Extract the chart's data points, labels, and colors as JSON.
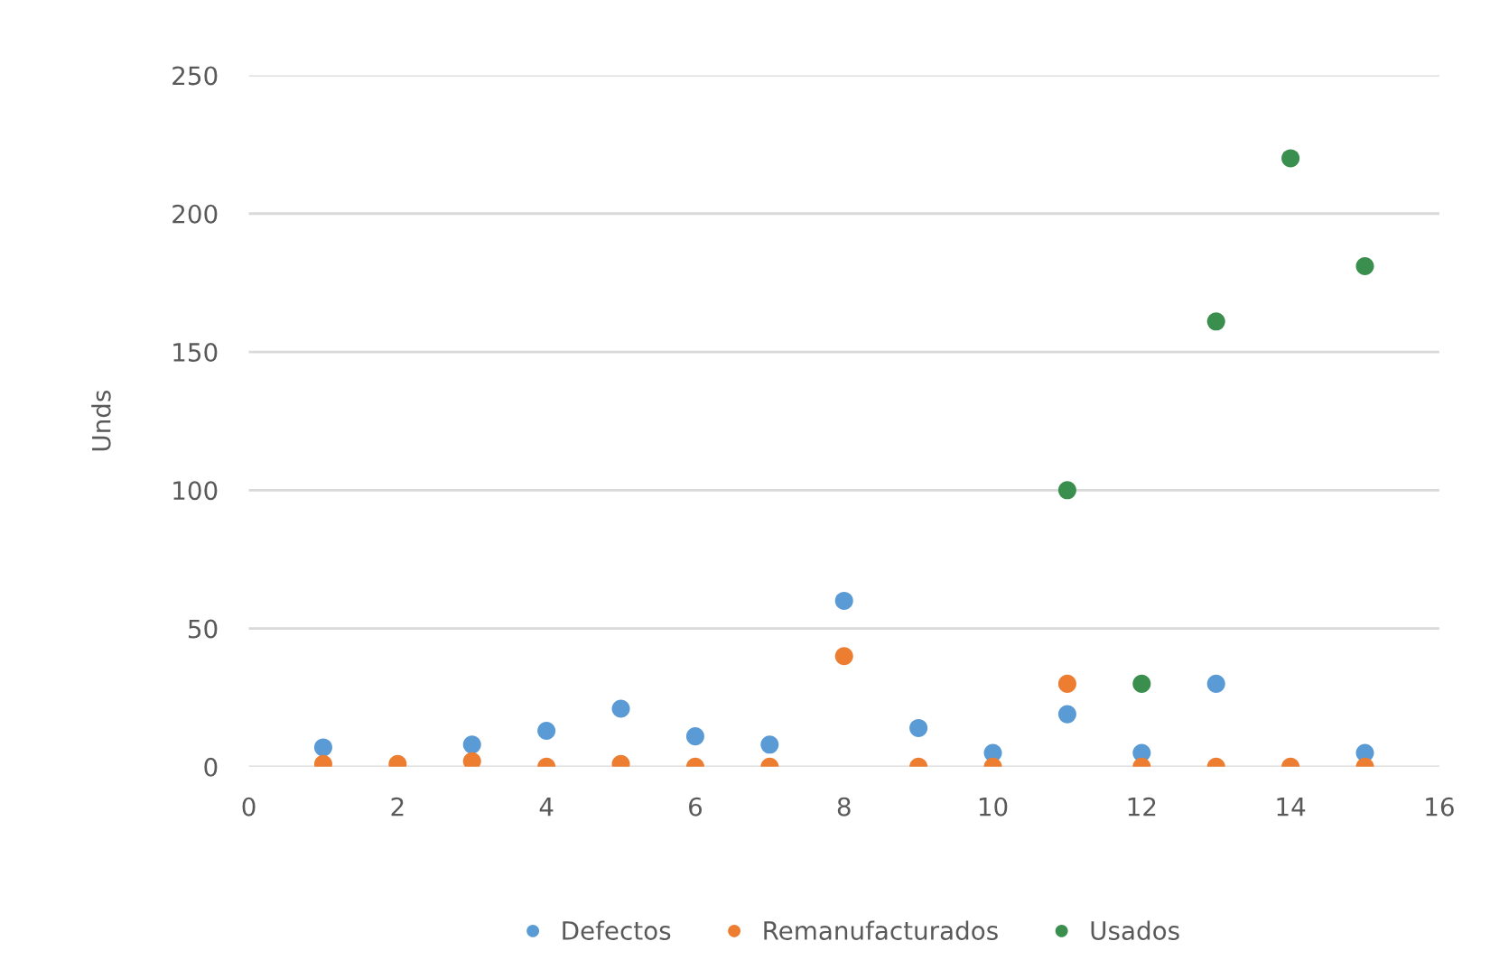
{
  "chart_data": {
    "type": "scatter",
    "ylabel": "Unds",
    "xlim": [
      0,
      16
    ],
    "xticks": [
      0,
      2,
      4,
      6,
      8,
      10,
      12,
      14,
      16
    ],
    "ylim": [
      0,
      250
    ],
    "yticks": [
      0,
      50,
      100,
      150,
      200,
      250
    ],
    "grid": "y",
    "legend": "bottom",
    "marker": "circle",
    "series": [
      {
        "name": "Defectos",
        "color": "#5b9bd5",
        "x": [
          1,
          2,
          3,
          4,
          5,
          6,
          7,
          8,
          9,
          10,
          11,
          12,
          13,
          14,
          15
        ],
        "values": [
          7,
          null,
          8,
          13,
          21,
          11,
          8,
          60,
          14,
          5,
          19,
          5,
          30,
          null,
          5
        ]
      },
      {
        "name": "Remanufacturados",
        "color": "#ed7d31",
        "x": [
          1,
          2,
          3,
          4,
          5,
          6,
          7,
          8,
          9,
          10,
          11,
          12,
          13,
          14,
          15
        ],
        "values": [
          1,
          1,
          2,
          0,
          1,
          0,
          0,
          40,
          0,
          0,
          30,
          0,
          0,
          0,
          0
        ]
      },
      {
        "name": "Usados",
        "color": "#3a8f4e",
        "x": [
          11,
          12,
          13,
          14,
          15
        ],
        "values": [
          100,
          30,
          161,
          220,
          181
        ]
      }
    ]
  }
}
